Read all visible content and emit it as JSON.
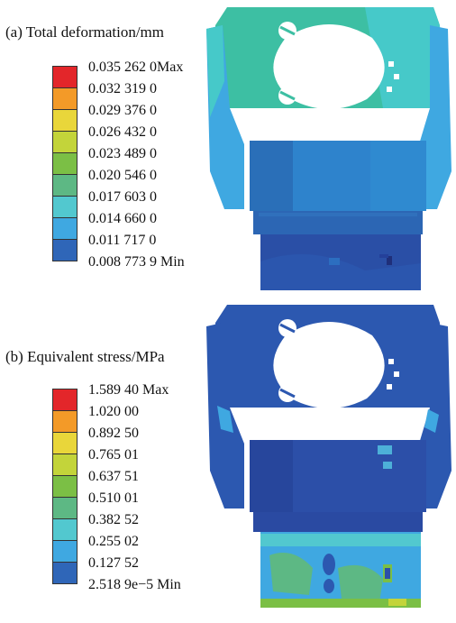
{
  "panels": [
    {
      "title": "(a) Total deformation/mm",
      "legend": [
        {
          "label": "0.035 262  0Max",
          "color": "#e3262a"
        },
        {
          "label": "0.032 319 0",
          "color": "#f39a28"
        },
        {
          "label": "0.029 376 0",
          "color": "#e9d63a"
        },
        {
          "label": "0.026 432 0",
          "color": "#c3d43a"
        },
        {
          "label": "0.023 489 0",
          "color": "#7bbf45"
        },
        {
          "label": "0.020 546 0",
          "color": "#5db884"
        },
        {
          "label": "0.017 603 0",
          "color": "#52c8cf"
        },
        {
          "label": "0.014 660 0",
          "color": "#3fa8e1"
        },
        {
          "label": "0.011 717 0",
          "color": "#2f66b8"
        },
        {
          "label": "0.008 773 9 Min",
          "color": "#2f66b8"
        }
      ]
    },
    {
      "title": "(b) Equivalent stress/MPa",
      "legend": [
        {
          "label": "1.589 40 Max",
          "color": "#e3262a"
        },
        {
          "label": "1.020 00",
          "color": "#f39a28"
        },
        {
          "label": "0.892 50",
          "color": "#e9d63a"
        },
        {
          "label": "0.765 01",
          "color": "#c3d43a"
        },
        {
          "label": "0.637 51",
          "color": "#7bbf45"
        },
        {
          "label": "0.510 01",
          "color": "#5db884"
        },
        {
          "label": "0.382 52",
          "color": "#52c8cf"
        },
        {
          "label": "0.255 02",
          "color": "#3fa8e1"
        },
        {
          "label": "0.127 52",
          "color": "#2f66b8"
        },
        {
          "label": "2.518 9e−5 Min",
          "color": "#2f66b8"
        }
      ]
    }
  ]
}
